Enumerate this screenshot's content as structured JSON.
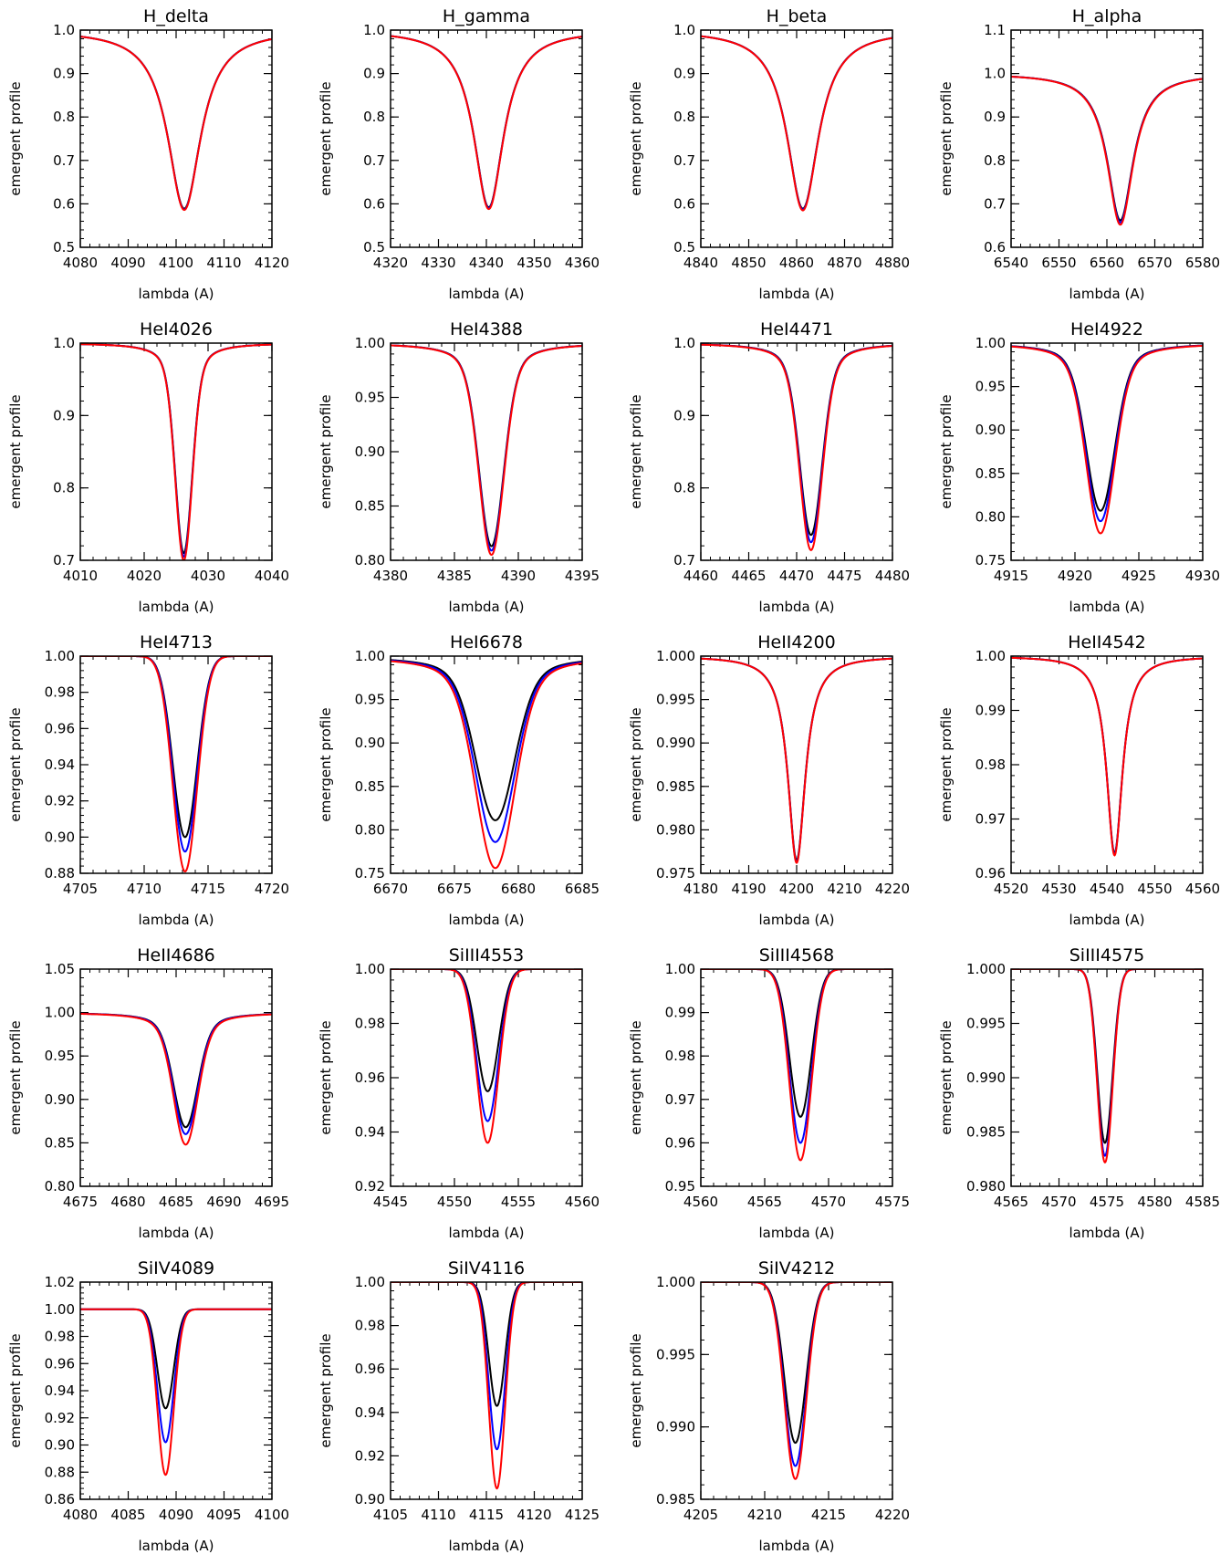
{
  "chart_data": [
    {
      "type": "line",
      "title": "H_delta",
      "xlabel": "lambda (A)",
      "ylabel": "emergent profile",
      "xlim": [
        4080,
        4120
      ],
      "ylim": [
        0.5,
        1.0
      ],
      "x_ticks": [
        4080,
        4090,
        4100,
        4110,
        4120
      ],
      "y_ticks": [
        "0.5",
        "0.6",
        "0.7",
        "0.8",
        "0.9",
        "1.0"
      ],
      "center": 4101.7,
      "width": 4.2,
      "shape": "lorentz",
      "series": [
        {
          "color": "#000000",
          "min": 0.589
        },
        {
          "color": "#0000ff",
          "min": 0.587
        },
        {
          "color": "#ff0000",
          "min": 0.586
        }
      ]
    },
    {
      "type": "line",
      "title": "H_gamma",
      "xlabel": "lambda (A)",
      "ylabel": "emergent profile",
      "xlim": [
        4320,
        4360
      ],
      "ylim": [
        0.5,
        1.0
      ],
      "x_ticks": [
        4320,
        4330,
        4340,
        4350,
        4360
      ],
      "y_ticks": [
        "0.5",
        "0.6",
        "0.7",
        "0.8",
        "0.9",
        "1.0"
      ],
      "center": 4340.5,
      "width": 3.8,
      "shape": "lorentz",
      "series": [
        {
          "color": "#000000",
          "min": 0.592
        },
        {
          "color": "#0000ff",
          "min": 0.59
        },
        {
          "color": "#ff0000",
          "min": 0.588
        }
      ]
    },
    {
      "type": "line",
      "title": "H_beta",
      "xlabel": "lambda (A)",
      "ylabel": "emergent profile",
      "xlim": [
        4840,
        4880
      ],
      "ylim": [
        0.5,
        1.0
      ],
      "x_ticks": [
        4840,
        4850,
        4860,
        4870,
        4880
      ],
      "y_ticks": [
        "0.5",
        "0.6",
        "0.7",
        "0.8",
        "0.9",
        "1.0"
      ],
      "center": 4861.3,
      "width": 4.0,
      "shape": "lorentz",
      "series": [
        {
          "color": "#000000",
          "min": 0.589
        },
        {
          "color": "#0000ff",
          "min": 0.587
        },
        {
          "color": "#ff0000",
          "min": 0.585
        }
      ]
    },
    {
      "type": "line",
      "title": "H_alpha",
      "xlabel": "lambda (A)",
      "ylabel": "emergent profile",
      "xlim": [
        6540,
        6580
      ],
      "ylim": [
        0.6,
        1.1
      ],
      "x_ticks": [
        6540,
        6550,
        6560,
        6570,
        6580
      ],
      "y_ticks": [
        "0.6",
        "0.7",
        "0.8",
        "0.9",
        "1.0",
        "1.1"
      ],
      "center": 6562.8,
      "width": 3.3,
      "shape": "lorentz",
      "series": [
        {
          "color": "#000000",
          "min": 0.662
        },
        {
          "color": "#0000ff",
          "min": 0.657
        },
        {
          "color": "#ff0000",
          "min": 0.652
        }
      ]
    },
    {
      "type": "line",
      "title": "HeI4026",
      "xlabel": "lambda (A)",
      "ylabel": "emergent profile",
      "xlim": [
        4010,
        4040
      ],
      "ylim": [
        0.7,
        1.0
      ],
      "x_ticks": [
        4010,
        4020,
        4030,
        4040
      ],
      "y_ticks": [
        "0.7",
        "0.8",
        "0.9",
        "1.0"
      ],
      "center": 4026.2,
      "width": 1.3,
      "shape": "mixed",
      "series": [
        {
          "color": "#000000",
          "min": 0.71
        },
        {
          "color": "#0000ff",
          "min": 0.705
        },
        {
          "color": "#ff0000",
          "min": 0.7
        }
      ]
    },
    {
      "type": "line",
      "title": "HeI4388",
      "xlabel": "lambda (A)",
      "ylabel": "emergent profile",
      "xlim": [
        4380,
        4395
      ],
      "ylim": [
        0.8,
        1.0
      ],
      "x_ticks": [
        4380,
        4385,
        4390,
        4395
      ],
      "y_ticks": [
        "0.80",
        "0.85",
        "0.90",
        "0.95",
        "1.00"
      ],
      "center": 4387.9,
      "width": 0.95,
      "shape": "mixed",
      "series": [
        {
          "color": "#000000",
          "min": 0.813
        },
        {
          "color": "#0000ff",
          "min": 0.809
        },
        {
          "color": "#ff0000",
          "min": 0.805
        }
      ]
    },
    {
      "type": "line",
      "title": "HeI4471",
      "xlabel": "lambda (A)",
      "ylabel": "emergent profile",
      "xlim": [
        4460,
        4480
      ],
      "ylim": [
        0.7,
        1.0
      ],
      "x_ticks": [
        4460,
        4465,
        4470,
        4475,
        4480
      ],
      "y_ticks": [
        "0.7",
        "0.8",
        "0.9",
        "1.0"
      ],
      "center": 4471.5,
      "width": 1.15,
      "shape": "mixed",
      "series": [
        {
          "color": "#000000",
          "min": 0.735
        },
        {
          "color": "#0000ff",
          "min": 0.725
        },
        {
          "color": "#ff0000",
          "min": 0.714
        }
      ]
    },
    {
      "type": "line",
      "title": "HeI4922",
      "xlabel": "lambda (A)",
      "ylabel": "emergent profile",
      "xlim": [
        4915,
        4930
      ],
      "ylim": [
        0.75,
        1.0
      ],
      "x_ticks": [
        4915,
        4920,
        4925,
        4930
      ],
      "y_ticks": [
        "0.75",
        "0.80",
        "0.85",
        "0.90",
        "0.95",
        "1.00"
      ],
      "center": 4922.0,
      "width": 1.1,
      "shape": "mixed",
      "series": [
        {
          "color": "#000000",
          "min": 0.807
        },
        {
          "color": "#0000ff",
          "min": 0.795
        },
        {
          "color": "#ff0000",
          "min": 0.781
        }
      ]
    },
    {
      "type": "line",
      "title": "HeI4713",
      "xlabel": "lambda (A)",
      "ylabel": "emergent profile",
      "xlim": [
        4705,
        4720
      ],
      "ylim": [
        0.88,
        1.0
      ],
      "x_ticks": [
        4705,
        4710,
        4715,
        4720
      ],
      "y_ticks": [
        "0.88",
        "0.90",
        "0.92",
        "0.94",
        "0.96",
        "0.98",
        "1.00"
      ],
      "center": 4713.2,
      "width": 0.95,
      "shape": "gauss",
      "series": [
        {
          "color": "#000000",
          "min": 0.9
        },
        {
          "color": "#0000ff",
          "min": 0.892
        },
        {
          "color": "#ff0000",
          "min": 0.881
        }
      ]
    },
    {
      "type": "line",
      "title": "HeI6678",
      "xlabel": "lambda (A)",
      "ylabel": "emergent profile",
      "xlim": [
        6670,
        6685
      ],
      "ylim": [
        0.75,
        1.0
      ],
      "x_ticks": [
        6670,
        6675,
        6680,
        6685
      ],
      "y_ticks": [
        "0.75",
        "0.80",
        "0.85",
        "0.90",
        "0.95",
        "1.00"
      ],
      "center": 6678.2,
      "width": 1.5,
      "shape": "mixed",
      "series": [
        {
          "color": "#000000",
          "min": 0.811
        },
        {
          "color": "#0000ff",
          "min": 0.786
        },
        {
          "color": "#ff0000",
          "min": 0.756
        }
      ]
    },
    {
      "type": "line",
      "title": "HeII4200",
      "xlabel": "lambda (A)",
      "ylabel": "emergent profile",
      "xlim": [
        4180,
        4220
      ],
      "ylim": [
        0.975,
        1.0
      ],
      "x_ticks": [
        4180,
        4190,
        4200,
        4210,
        4220
      ],
      "y_ticks": [
        "0.975",
        "0.980",
        "0.985",
        "0.990",
        "0.995",
        "1.000"
      ],
      "center": 4200.0,
      "width": 2.2,
      "shape": "lorentz",
      "series": [
        {
          "color": "#000000",
          "min": 0.9765
        },
        {
          "color": "#0000ff",
          "min": 0.9763
        },
        {
          "color": "#ff0000",
          "min": 0.9762
        }
      ]
    },
    {
      "type": "line",
      "title": "HeII4542",
      "xlabel": "lambda (A)",
      "ylabel": "emergent profile",
      "xlim": [
        4520,
        4560
      ],
      "ylim": [
        0.96,
        1.0
      ],
      "x_ticks": [
        4520,
        4530,
        4540,
        4550,
        4560
      ],
      "y_ticks": [
        "0.96",
        "0.97",
        "0.98",
        "0.99",
        "1.00"
      ],
      "center": 4541.6,
      "width": 2.0,
      "shape": "lorentz",
      "series": [
        {
          "color": "#000000",
          "min": 0.9637
        },
        {
          "color": "#0000ff",
          "min": 0.9635
        },
        {
          "color": "#ff0000",
          "min": 0.9633
        }
      ]
    },
    {
      "type": "line",
      "title": "HeII4686",
      "xlabel": "lambda (A)",
      "ylabel": "emergent profile",
      "xlim": [
        4675,
        4695
      ],
      "ylim": [
        0.8,
        1.05
      ],
      "x_ticks": [
        4675,
        4680,
        4685,
        4690,
        4695
      ],
      "y_ticks": [
        "0.80",
        "0.85",
        "0.90",
        "0.95",
        "1.00",
        "1.05"
      ],
      "center": 4686.0,
      "width": 1.25,
      "shape": "mixed",
      "series": [
        {
          "color": "#000000",
          "min": 0.868
        },
        {
          "color": "#0000ff",
          "min": 0.86
        },
        {
          "color": "#ff0000",
          "min": 0.848
        }
      ]
    },
    {
      "type": "line",
      "title": "SiIII4553",
      "xlabel": "lambda (A)",
      "ylabel": "emergent profile",
      "xlim": [
        4545,
        4560
      ],
      "ylim": [
        0.92,
        1.0
      ],
      "x_ticks": [
        4545,
        4550,
        4555,
        4560
      ],
      "y_ticks": [
        "0.92",
        "0.94",
        "0.96",
        "0.98",
        "1.00"
      ],
      "center": 4552.6,
      "width": 0.85,
      "shape": "gauss",
      "series": [
        {
          "color": "#000000",
          "min": 0.955
        },
        {
          "color": "#0000ff",
          "min": 0.944
        },
        {
          "color": "#ff0000",
          "min": 0.936
        }
      ]
    },
    {
      "type": "line",
      "title": "SiIII4568",
      "xlabel": "lambda (A)",
      "ylabel": "emergent profile",
      "xlim": [
        4560,
        4575
      ],
      "ylim": [
        0.95,
        1.0
      ],
      "x_ticks": [
        4560,
        4565,
        4570,
        4575
      ],
      "y_ticks": [
        "0.95",
        "0.96",
        "0.97",
        "0.98",
        "0.99",
        "1.00"
      ],
      "center": 4567.8,
      "width": 0.85,
      "shape": "gauss",
      "series": [
        {
          "color": "#000000",
          "min": 0.966
        },
        {
          "color": "#0000ff",
          "min": 0.96
        },
        {
          "color": "#ff0000",
          "min": 0.956
        }
      ]
    },
    {
      "type": "line",
      "title": "SiIII4575",
      "xlabel": "lambda (A)",
      "ylabel": "emergent profile",
      "xlim": [
        4565,
        4585
      ],
      "ylim": [
        0.98,
        1.0
      ],
      "x_ticks": [
        4565,
        4570,
        4575,
        4580,
        4585
      ],
      "y_ticks": [
        "0.980",
        "0.985",
        "0.990",
        "0.995",
        "1.000"
      ],
      "center": 4574.8,
      "width": 0.8,
      "shape": "gauss",
      "series": [
        {
          "color": "#000000",
          "min": 0.984
        },
        {
          "color": "#0000ff",
          "min": 0.9828
        },
        {
          "color": "#ff0000",
          "min": 0.9822
        }
      ]
    },
    {
      "type": "line",
      "title": "SiIV4089",
      "xlabel": "lambda (A)",
      "ylabel": "emergent profile",
      "xlim": [
        4080,
        4100
      ],
      "ylim": [
        0.86,
        1.02
      ],
      "x_ticks": [
        4080,
        4085,
        4090,
        4095,
        4100
      ],
      "y_ticks": [
        "0.86",
        "0.88",
        "0.90",
        "0.92",
        "0.94",
        "0.96",
        "0.98",
        "1.00",
        "1.02"
      ],
      "center": 4088.9,
      "width": 0.85,
      "shape": "gauss",
      "series": [
        {
          "color": "#000000",
          "min": 0.927
        },
        {
          "color": "#0000ff",
          "min": 0.902
        },
        {
          "color": "#ff0000",
          "min": 0.878
        }
      ]
    },
    {
      "type": "line",
      "title": "SiIV4116",
      "xlabel": "lambda (A)",
      "ylabel": "emergent profile",
      "xlim": [
        4105,
        4125
      ],
      "ylim": [
        0.9,
        1.0
      ],
      "x_ticks": [
        4105,
        4110,
        4115,
        4120,
        4125
      ],
      "y_ticks": [
        "0.90",
        "0.92",
        "0.94",
        "0.96",
        "0.98",
        "1.00"
      ],
      "center": 4116.1,
      "width": 0.85,
      "shape": "gauss",
      "series": [
        {
          "color": "#000000",
          "min": 0.943
        },
        {
          "color": "#0000ff",
          "min": 0.923
        },
        {
          "color": "#ff0000",
          "min": 0.905
        }
      ]
    },
    {
      "type": "line",
      "title": "SiIV4212",
      "xlabel": "lambda (A)",
      "ylabel": "emergent profile",
      "xlim": [
        4205,
        4220
      ],
      "ylim": [
        0.985,
        1.0
      ],
      "x_ticks": [
        4205,
        4210,
        4215,
        4220
      ],
      "y_ticks": [
        "0.985",
        "0.990",
        "0.995",
        "1.000"
      ],
      "center": 4212.4,
      "width": 0.85,
      "shape": "gauss",
      "series": [
        {
          "color": "#000000",
          "min": 0.9889
        },
        {
          "color": "#0000ff",
          "min": 0.9873
        },
        {
          "color": "#ff0000",
          "min": 0.9864
        }
      ]
    }
  ]
}
